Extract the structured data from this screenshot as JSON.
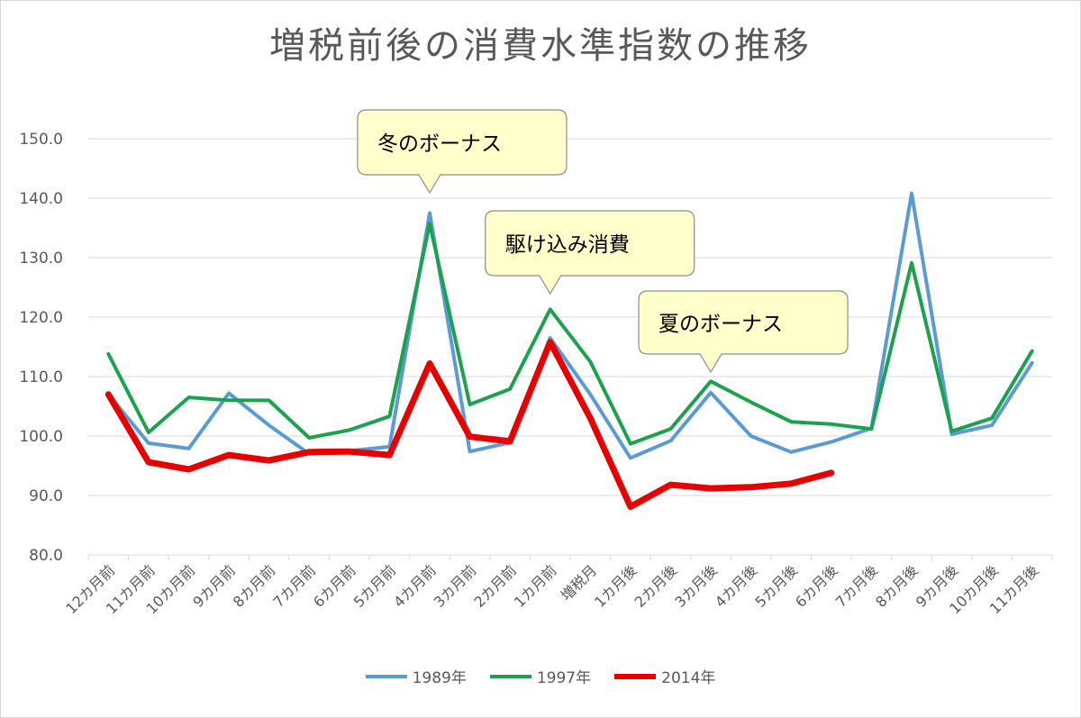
{
  "chart_data": {
    "type": "line",
    "title": "増税前後の消費水準指数の推移",
    "xlabel": "",
    "ylabel": "",
    "ylim": [
      80,
      150
    ],
    "yticks": [
      "80.0",
      "90.0",
      "100.0",
      "110.0",
      "120.0",
      "130.0",
      "140.0",
      "150.0"
    ],
    "categories": [
      "12カ月前",
      "11カ月前",
      "10カ月前",
      "9カ月前",
      "8カ月前",
      "7カ月前",
      "6カ月前",
      "5カ月前",
      "4カ月前",
      "3カ月前",
      "2カ月前",
      "1カ月前",
      "増税月",
      "1カ月後",
      "2カ月後",
      "3カ月後",
      "4カ月後",
      "5カ月後",
      "6カ月後",
      "7カ月後",
      "8カ月後",
      "9カ月後",
      "10カ月後",
      "11カ月後"
    ],
    "series": [
      {
        "name": "1989年",
        "color": "#5b9bd5",
        "values": [
          107.0,
          98.8,
          97.9,
          107.2,
          101.8,
          97.0,
          97.5,
          98.2,
          137.5,
          97.4,
          98.9,
          116.5,
          107.0,
          96.3,
          99.2,
          107.3,
          100.0,
          97.3,
          99.0,
          101.3,
          140.8,
          100.3,
          101.8,
          112.3
        ]
      },
      {
        "name": "1997年",
        "color": "#1ca14e",
        "values": [
          113.8,
          100.6,
          106.5,
          106.0,
          106.0,
          99.7,
          101.0,
          103.3,
          135.7,
          105.3,
          107.9,
          121.3,
          112.5,
          98.7,
          101.2,
          109.2,
          105.7,
          102.4,
          102.0,
          101.2,
          129.1,
          100.8,
          103.0,
          114.3
        ]
      },
      {
        "name": "2014年",
        "color": "#e60000",
        "values": [
          107.0,
          95.6,
          94.4,
          96.8,
          95.9,
          97.3,
          97.4,
          96.8,
          112.2,
          99.9,
          99.1,
          115.8,
          103.0,
          88.1,
          91.8,
          91.2,
          91.4,
          92.0,
          93.8,
          null,
          null,
          null,
          null,
          null
        ]
      }
    ],
    "legend": "bottom",
    "grid": true,
    "annotations": [
      {
        "text": "冬のボーナス",
        "target_index": 8
      },
      {
        "text": "駆け込み消費",
        "target_index": 11
      },
      {
        "text": "夏のボーナス",
        "target_index": 15
      }
    ]
  }
}
